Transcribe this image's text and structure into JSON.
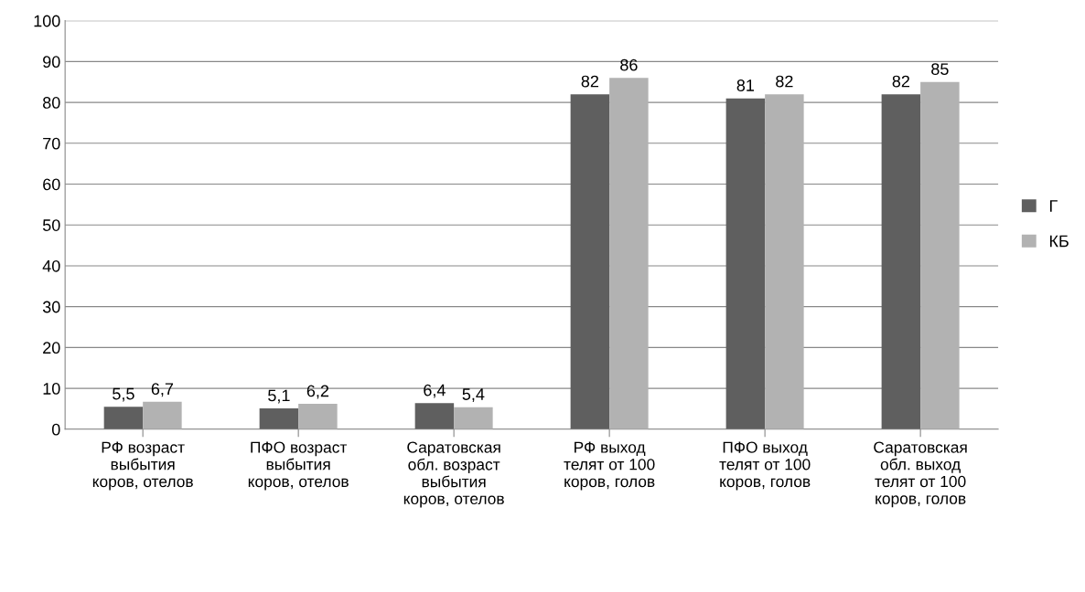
{
  "chart_data": {
    "type": "bar",
    "categories": [
      "РФ возраст\nвыбытия\nкоров, отелов",
      "ПФО возраст\nвыбытия\nкоров, отелов",
      "Саратовская\nобл. возраст\nвыбытия\nкоров, отелов",
      "РФ выход\nтелят от 100\nкоров, голов",
      "ПФО выход\nтелят от 100\nкоров, голов",
      "Саратовская\nобл. выход\nтелят от 100\nкоров, голов"
    ],
    "series": [
      {
        "name": "Г",
        "color": "#5f5f5f",
        "values": [
          5.5,
          5.1,
          6.4,
          82,
          81,
          82
        ],
        "value_labels": [
          "5,5",
          "5,1",
          "6,4",
          "82",
          "81",
          "82"
        ]
      },
      {
        "name": "КБ",
        "color": "#b2b2b2",
        "values": [
          6.7,
          6.2,
          5.4,
          86,
          82,
          85
        ],
        "value_labels": [
          "6,7",
          "6,2",
          "5,4",
          "86",
          "82",
          "85"
        ]
      }
    ],
    "ylim": [
      0,
      100
    ],
    "yticks": [
      0,
      10,
      20,
      30,
      40,
      50,
      60,
      70,
      80,
      90,
      100
    ],
    "grid": "y",
    "legend": "right"
  }
}
